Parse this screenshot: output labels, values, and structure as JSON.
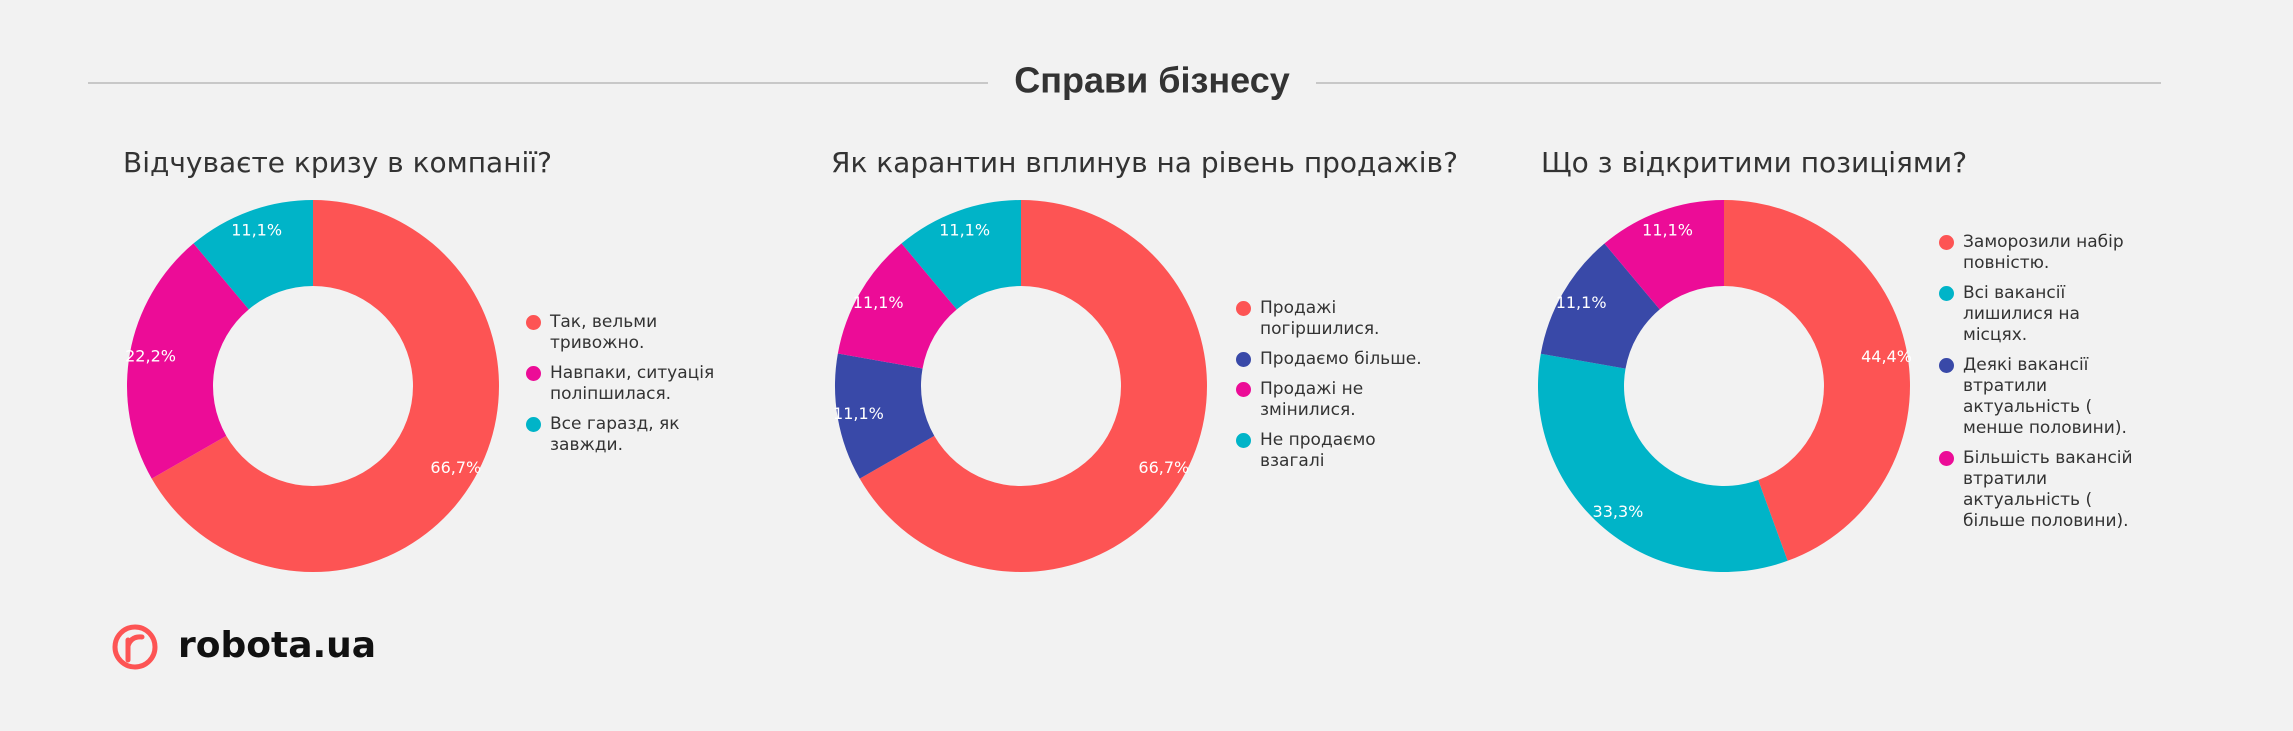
{
  "title": "Справи бізнесу",
  "brand": "robota.ua",
  "chart_data": [
    {
      "type": "pie",
      "donut": true,
      "title": "Відчуваєте кризу в компанії?",
      "categories": [
        "Так, вельми тривожно.",
        "Навпаки, ситуація поліпшилася.",
        "Все гаразд, як завжди."
      ],
      "values": [
        66.7,
        22.2,
        11.1
      ],
      "value_labels": [
        "66,7%",
        "22,2%",
        "11,1%"
      ],
      "colors": [
        "#fd5454",
        "#ec0c97",
        "#00b4c8"
      ]
    },
    {
      "type": "pie",
      "donut": true,
      "title": "Як карантин вплинув на рівень продажів?",
      "categories": [
        "Продажі погіршилися.",
        "Продаємо більше.",
        "Продажі не змінилися.",
        "Не продаємо взагалі"
      ],
      "values": [
        66.7,
        11.1,
        11.1,
        11.1
      ],
      "value_labels": [
        "66,7%",
        "11,1%",
        "11,1%",
        "11,1%"
      ],
      "colors": [
        "#fd5454",
        "#3949a8",
        "#ec0c97",
        "#00b4c8"
      ]
    },
    {
      "type": "pie",
      "donut": true,
      "title": "Що з відкритими позиціями?",
      "categories": [
        "Заморозили набір повністю.",
        "Всі вакансії лишилися на місцях.",
        "Деякі вакансії втратили актуальність ( менше половини).",
        "Більшість вакансій втратили актуальність ( більше половини)."
      ],
      "values": [
        44.4,
        33.3,
        11.1,
        11.1
      ],
      "value_labels": [
        "44,4%",
        "33,3%",
        "11,1%",
        "11,1%"
      ],
      "colors": [
        "#fd5454",
        "#00b4c8",
        "#3949a8",
        "#ec0c97"
      ]
    }
  ]
}
